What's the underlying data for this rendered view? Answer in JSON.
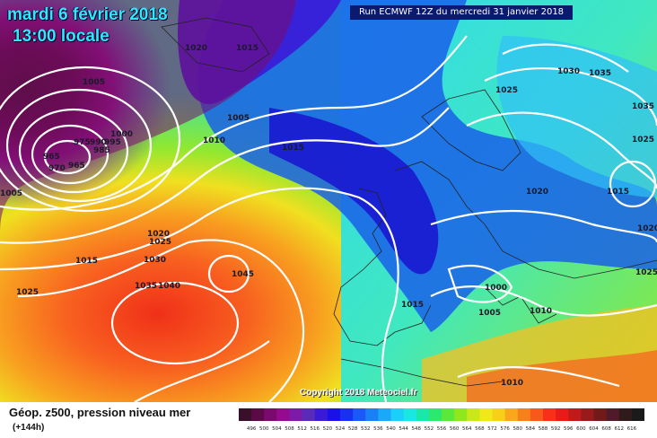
{
  "header": {
    "date": "mardi 6 février 2018",
    "time": "13:00 locale",
    "run": "Run ECMWF 12Z du mercredi 31 janvier 2018"
  },
  "copyright": "Copyright 2018 Meteociel.fr",
  "footer": {
    "title": "Géop. z500, pression niveau mer",
    "subtitle": "(+144h)"
  },
  "pressure_labels": [
    "1020",
    "1015",
    "1005",
    "1005",
    "1000",
    "975",
    "990",
    "995",
    "985",
    "965",
    "970",
    "965",
    "1005",
    "1010",
    "1015",
    "1020",
    "1025",
    "1030",
    "1035",
    "1040",
    "1045",
    "1015",
    "1025",
    "1025",
    "1030",
    "1035",
    "1035",
    "1025",
    "1020",
    "1015",
    "1020",
    "1025",
    "1000",
    "1005",
    "1010",
    "1015",
    "1010"
  ],
  "legend": {
    "colors": [
      "#3a0f2a",
      "#5b0a46",
      "#7c0a6e",
      "#950a8e",
      "#7d1aa8",
      "#5a2ab8",
      "#3a1ad8",
      "#1a10e8",
      "#1a30f0",
      "#1a58f8",
      "#1a80f8",
      "#1aa8f8",
      "#1ad0f8",
      "#1ae8e0",
      "#1ae8a8",
      "#2ae870",
      "#5ae83a",
      "#90e81a",
      "#c8e81a",
      "#f0e81a",
      "#f8d01a",
      "#f8a81a",
      "#f8801a",
      "#f8581a",
      "#f8301a",
      "#e81a1a",
      "#c01a1a",
      "#981a1a",
      "#701a1a",
      "#501a2a",
      "#301a1a",
      "#1a1a1a"
    ],
    "values": [
      "496",
      "500",
      "504",
      "508",
      "512",
      "516",
      "520",
      "524",
      "528",
      "532",
      "536",
      "540",
      "544",
      "548",
      "552",
      "556",
      "560",
      "564",
      "568",
      "572",
      "576",
      "580",
      "584",
      "588",
      "592",
      "596",
      "600",
      "604",
      "608",
      "612",
      "616"
    ]
  }
}
